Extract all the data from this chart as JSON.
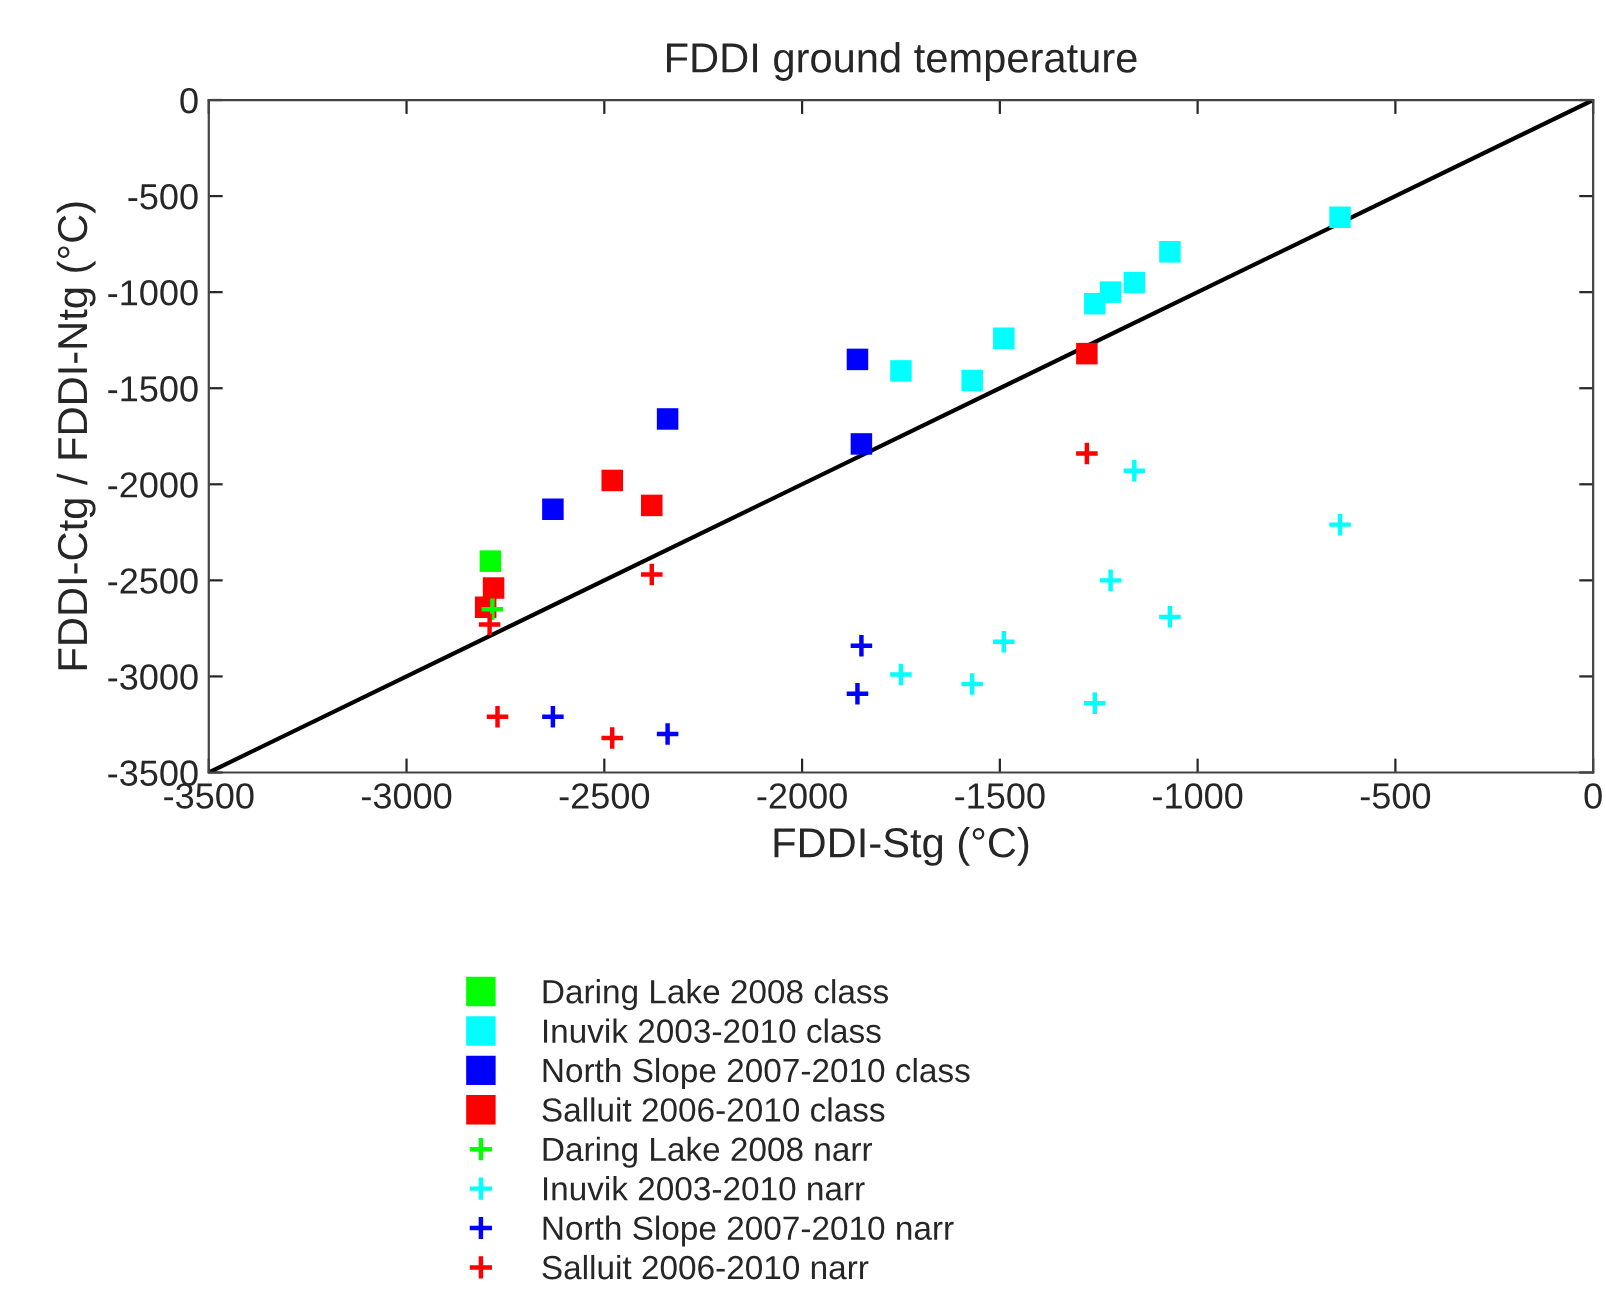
{
  "chart_data": {
    "type": "scatter",
    "title": "FDDI ground temperature",
    "xlabel": "FDDI-Stg (°C)",
    "ylabel": "FDDI-Ctg / FDDI-Ntg (°C)",
    "xlim": [
      -3500,
      0
    ],
    "ylim": [
      -3500,
      0
    ],
    "xticks": [
      -3500,
      -3000,
      -2500,
      -2000,
      -1500,
      -1000,
      -500,
      0
    ],
    "yticks": [
      -3500,
      -3000,
      -2500,
      -2000,
      -1500,
      -1000,
      -500,
      0
    ],
    "grid": false,
    "legend": "bottom",
    "series": [
      {
        "name": "Daring Lake 2008 class",
        "color": "#00ff00",
        "marker": "square",
        "x": [
          -2788
        ],
        "values": [
          -2400
        ]
      },
      {
        "name": "Inuvik 2003-2010 class",
        "color": "#00ffff",
        "marker": "square",
        "x": [
          -640,
          -1070,
          -1160,
          -1220,
          -1260,
          -1490,
          -1570,
          -1750
        ],
        "values": [
          -610,
          -790,
          -950,
          -1000,
          -1060,
          -1240,
          -1460,
          -1410
        ]
      },
      {
        "name": "North Slope 2007-2010 class",
        "color": "#0000ff",
        "marker": "square",
        "x": [
          -1860,
          -1850,
          -2340,
          -2630
        ],
        "values": [
          -1350,
          -1790,
          -1660,
          -2130
        ]
      },
      {
        "name": "Salluit 2006-2010 class",
        "color": "#ff0000",
        "marker": "square",
        "x": [
          -1280,
          -2480,
          -2380,
          -2780,
          -2800
        ],
        "values": [
          -1320,
          -1980,
          -2110,
          -2540,
          -2640
        ]
      },
      {
        "name": "Daring Lake 2008 narr",
        "color": "#00ff00",
        "marker": "cross",
        "x": [
          -2783
        ],
        "values": [
          -2650
        ]
      },
      {
        "name": "Inuvik 2003-2010 narr",
        "color": "#00ffff",
        "marker": "cross",
        "x": [
          -1160,
          -640,
          -1220,
          -1070,
          -1490,
          -1750,
          -1570,
          -1260
        ],
        "values": [
          -1930,
          -2210,
          -2500,
          -2690,
          -2820,
          -2990,
          -3040,
          -3140
        ]
      },
      {
        "name": "North Slope 2007-2010 narr",
        "color": "#0000ff",
        "marker": "cross",
        "x": [
          -1850,
          -1860,
          -2340,
          -2630
        ],
        "values": [
          -2840,
          -3090,
          -3300,
          -3210
        ]
      },
      {
        "name": "Salluit 2006-2010 narr",
        "color": "#ff0000",
        "marker": "cross",
        "x": [
          -1280,
          -2380,
          -2770,
          -2480,
          -2790
        ],
        "values": [
          -1840,
          -2470,
          -3210,
          -3320,
          -2730
        ]
      },
      {
        "type": "line",
        "color": "#000000",
        "marker": "none",
        "x": [
          -3500,
          0
        ],
        "values": [
          -3500,
          0
        ]
      }
    ]
  }
}
